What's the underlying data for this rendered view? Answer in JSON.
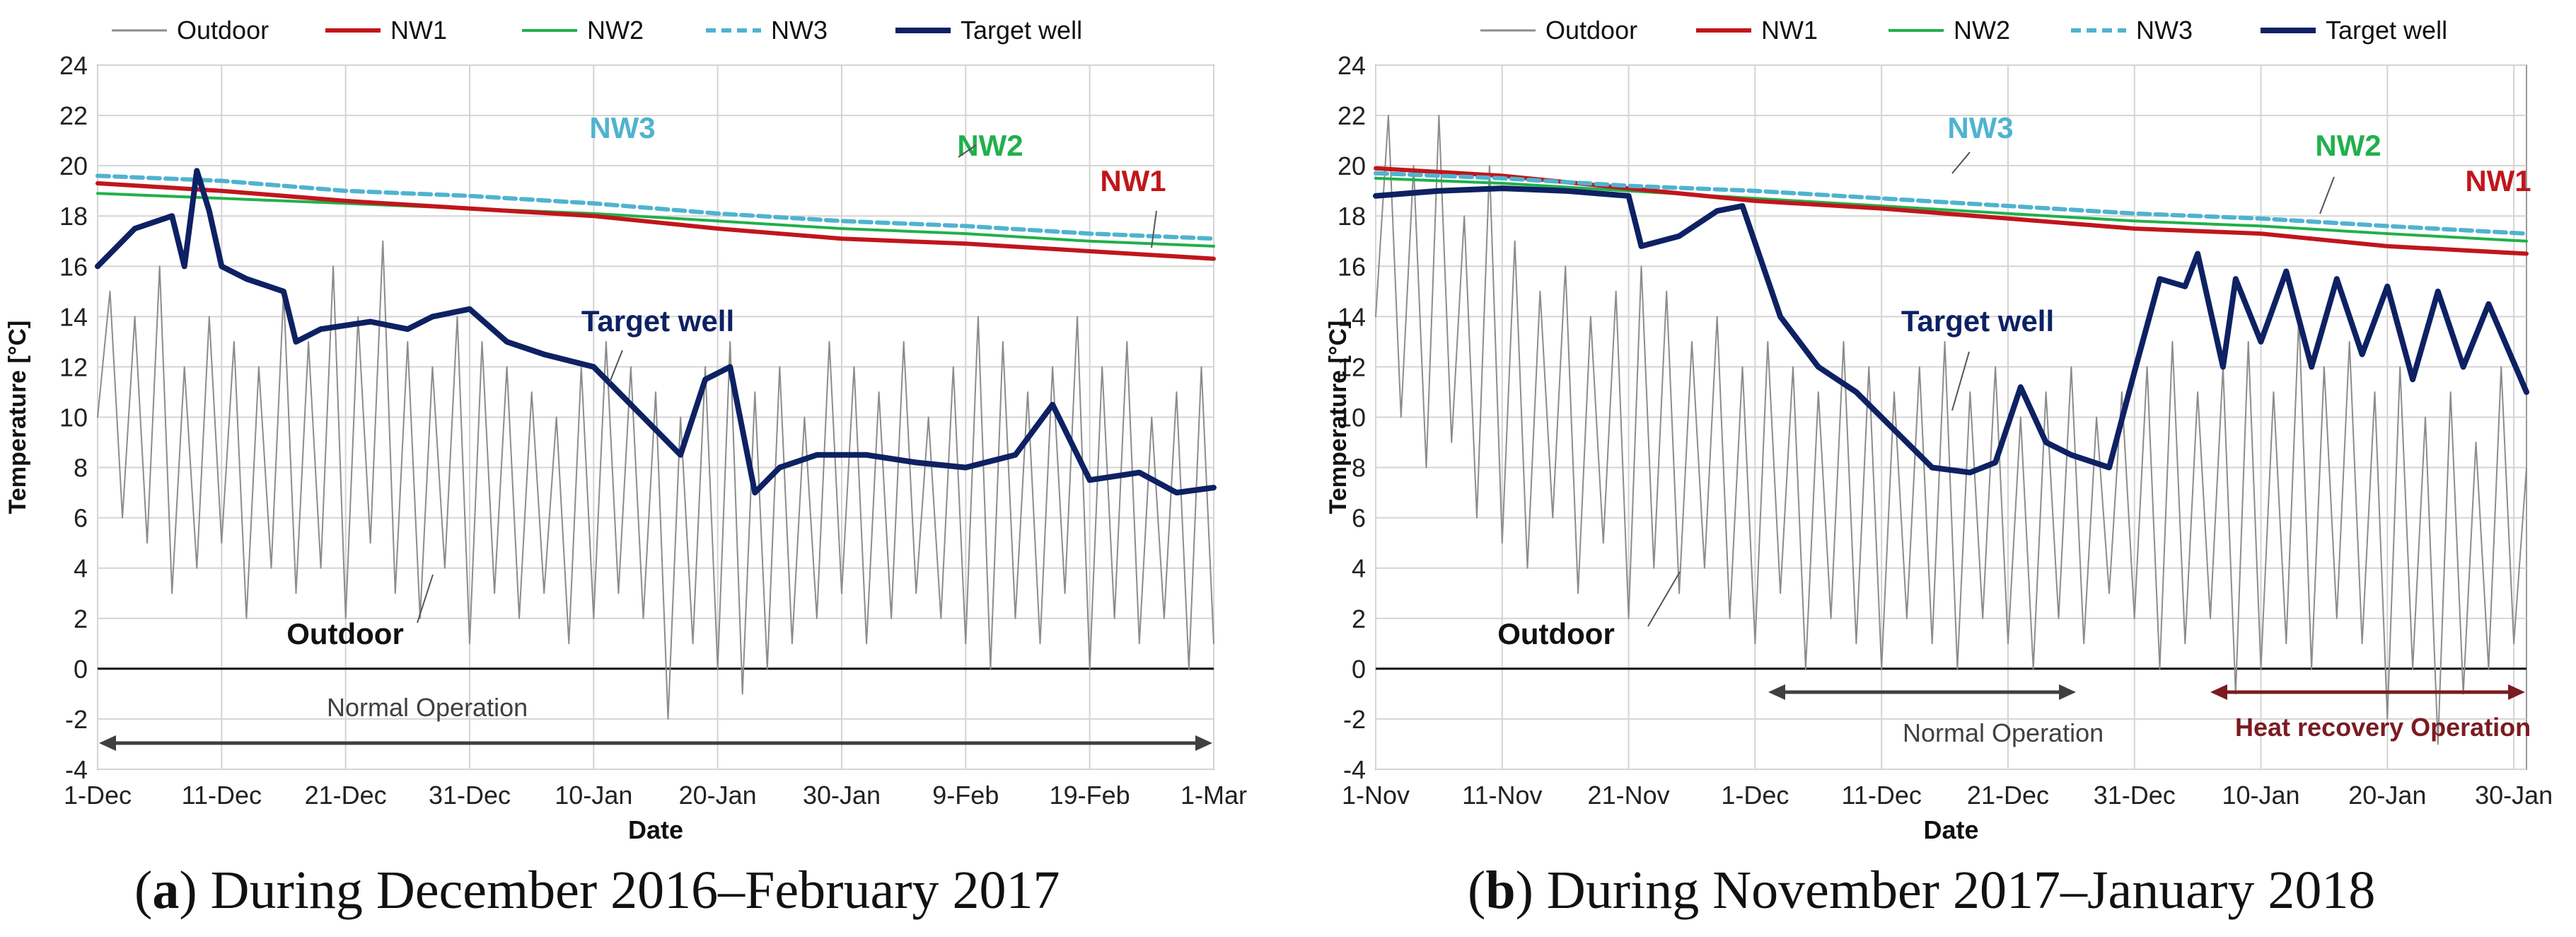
{
  "chart_data": [
    {
      "type": "line",
      "panel": "a",
      "xlabel": "Date",
      "ylabel": "Temperature [°C]",
      "ylim": [
        -4,
        24
      ],
      "yticks": [
        -4,
        -2,
        0,
        2,
        4,
        6,
        8,
        10,
        12,
        14,
        16,
        18,
        20,
        22,
        24
      ],
      "xlim_days": [
        0,
        90
      ],
      "xtick_labels": [
        "1-Dec",
        "11-Dec",
        "21-Dec",
        "31-Dec",
        "10-Jan",
        "20-Jan",
        "30-Jan",
        "9-Feb",
        "19-Feb",
        "1-Mar"
      ],
      "xtick_days": [
        0,
        10,
        20,
        30,
        40,
        50,
        60,
        70,
        80,
        90
      ],
      "legend": [
        "Outdoor",
        "NW1",
        "NW2",
        "NW3",
        "Target well"
      ],
      "colors": {
        "Outdoor": "#8c8c8c",
        "NW1": "#c0161c",
        "NW2": "#21b04b",
        "NW3": "#4fb3cf",
        "Target well": "#0d2163"
      },
      "series": [
        {
          "name": "NW1",
          "x": [
            0,
            10,
            20,
            30,
            40,
            50,
            60,
            70,
            80,
            90
          ],
          "values": [
            19.3,
            19.0,
            18.6,
            18.3,
            18.0,
            17.5,
            17.1,
            16.9,
            16.6,
            16.3
          ]
        },
        {
          "name": "NW2",
          "x": [
            0,
            10,
            20,
            30,
            40,
            50,
            60,
            70,
            80,
            90
          ],
          "values": [
            18.9,
            18.7,
            18.5,
            18.3,
            18.1,
            17.8,
            17.5,
            17.3,
            17.0,
            16.8
          ]
        },
        {
          "name": "NW3",
          "x": [
            0,
            10,
            20,
            30,
            40,
            50,
            60,
            70,
            80,
            90
          ],
          "values": [
            19.6,
            19.4,
            19.0,
            18.8,
            18.5,
            18.1,
            17.8,
            17.6,
            17.3,
            17.1
          ]
        },
        {
          "name": "Target well",
          "x": [
            0,
            3,
            6,
            7,
            8,
            9,
            10,
            12,
            15,
            16,
            18,
            22,
            25,
            27,
            30,
            33,
            36,
            40,
            44,
            47,
            49,
            51,
            53,
            55,
            58,
            62,
            66,
            70,
            74,
            77,
            80,
            84,
            87,
            90
          ],
          "values": [
            16.0,
            17.5,
            18.0,
            16.0,
            19.8,
            18.2,
            16.0,
            15.5,
            15.0,
            13.0,
            13.5,
            13.8,
            13.5,
            14.0,
            14.3,
            13.0,
            12.5,
            12.0,
            10.0,
            8.5,
            11.5,
            12.0,
            7.0,
            8.0,
            8.5,
            8.5,
            8.2,
            8.0,
            8.5,
            10.5,
            7.5,
            7.8,
            7.0,
            7.2
          ]
        },
        {
          "name": "Outdoor",
          "x": [
            0,
            1,
            2,
            3,
            4,
            5,
            6,
            7,
            8,
            9,
            10,
            11,
            12,
            13,
            14,
            15,
            16,
            17,
            18,
            19,
            20,
            21,
            22,
            23,
            24,
            25,
            26,
            27,
            28,
            29,
            30,
            31,
            32,
            33,
            34,
            35,
            36,
            37,
            38,
            39,
            40,
            41,
            42,
            43,
            44,
            45,
            46,
            47,
            48,
            49,
            50,
            51,
            52,
            53,
            54,
            55,
            56,
            57,
            58,
            59,
            60,
            61,
            62,
            63,
            64,
            65,
            66,
            67,
            68,
            69,
            70,
            71,
            72,
            73,
            74,
            75,
            76,
            77,
            78,
            79,
            80,
            81,
            82,
            83,
            84,
            85,
            86,
            87,
            88,
            89,
            90
          ],
          "values": [
            10,
            15,
            6,
            14,
            5,
            16,
            3,
            12,
            4,
            14,
            5,
            13,
            2,
            12,
            4,
            15,
            3,
            13,
            4,
            16,
            2,
            14,
            5,
            17,
            3,
            13,
            2,
            12,
            4,
            14,
            1,
            13,
            3,
            12,
            2,
            11,
            3,
            10,
            1,
            12,
            2,
            13,
            3,
            12,
            2,
            11,
            -2,
            10,
            1,
            12,
            0,
            13,
            -1,
            11,
            0,
            12,
            1,
            10,
            2,
            13,
            3,
            12,
            1,
            11,
            2,
            13,
            3,
            10,
            2,
            12,
            1,
            14,
            0,
            13,
            2,
            11,
            1,
            12,
            3,
            14,
            0,
            12,
            2,
            13,
            1,
            10,
            2,
            11,
            0,
            12,
            1
          ]
        }
      ],
      "annotations": [
        "NW3",
        "NW2",
        "NW1",
        "Target well",
        "Outdoor",
        "Normal Operation"
      ]
    },
    {
      "type": "line",
      "panel": "b",
      "xlabel": "Date",
      "ylabel": "Temperature [°C]",
      "ylim": [
        -4,
        24
      ],
      "yticks": [
        -4,
        -2,
        0,
        2,
        4,
        6,
        8,
        10,
        12,
        14,
        16,
        18,
        20,
        22,
        24
      ],
      "xlim_days": [
        0,
        91
      ],
      "xtick_labels": [
        "1-Nov",
        "11-Nov",
        "21-Nov",
        "1-Dec",
        "11-Dec",
        "21-Dec",
        "31-Dec",
        "10-Jan",
        "20-Jan",
        "30-Jan"
      ],
      "xtick_days": [
        0,
        10,
        20,
        30,
        40,
        50,
        60,
        70,
        80,
        90
      ],
      "legend": [
        "Outdoor",
        "NW1",
        "NW2",
        "NW3",
        "Target well"
      ],
      "colors": {
        "Outdoor": "#8c8c8c",
        "NW1": "#c0161c",
        "NW2": "#21b04b",
        "NW3": "#4fb3cf",
        "Target well": "#0d2163"
      },
      "series": [
        {
          "name": "NW1",
          "x": [
            0,
            10,
            20,
            30,
            40,
            50,
            60,
            70,
            80,
            91
          ],
          "values": [
            19.9,
            19.6,
            19.1,
            18.6,
            18.3,
            17.9,
            17.5,
            17.3,
            16.8,
            16.5
          ]
        },
        {
          "name": "NW2",
          "x": [
            0,
            10,
            20,
            30,
            40,
            50,
            60,
            70,
            80,
            91
          ],
          "values": [
            19.5,
            19.3,
            19.0,
            18.7,
            18.4,
            18.1,
            17.8,
            17.6,
            17.3,
            17.0
          ]
        },
        {
          "name": "NW3",
          "x": [
            0,
            10,
            20,
            30,
            40,
            50,
            60,
            70,
            80,
            91
          ],
          "values": [
            19.7,
            19.5,
            19.2,
            19.0,
            18.7,
            18.4,
            18.1,
            17.9,
            17.6,
            17.3
          ]
        },
        {
          "name": "Target well",
          "x": [
            0,
            5,
            10,
            15,
            20,
            21,
            24,
            27,
            29,
            32,
            35,
            38,
            41,
            44,
            47,
            49,
            51,
            53,
            55,
            58,
            60,
            62,
            64,
            65,
            67,
            68,
            70,
            72,
            74,
            76,
            78,
            80,
            82,
            84,
            86,
            88,
            91
          ],
          "values": [
            18.8,
            19.0,
            19.1,
            19.0,
            18.8,
            16.8,
            17.2,
            18.2,
            18.4,
            14.0,
            12.0,
            11.0,
            9.5,
            8.0,
            7.8,
            8.2,
            11.2,
            9.0,
            8.5,
            8.0,
            11.8,
            15.5,
            15.2,
            16.5,
            12.0,
            15.5,
            13.0,
            15.8,
            12.0,
            15.5,
            12.5,
            15.2,
            11.5,
            15.0,
            12.0,
            14.5,
            11.0
          ]
        },
        {
          "name": "Outdoor",
          "x": [
            0,
            1,
            2,
            3,
            4,
            5,
            6,
            7,
            8,
            9,
            10,
            11,
            12,
            13,
            14,
            15,
            16,
            17,
            18,
            19,
            20,
            21,
            22,
            23,
            24,
            25,
            26,
            27,
            28,
            29,
            30,
            31,
            32,
            33,
            34,
            35,
            36,
            37,
            38,
            39,
            40,
            41,
            42,
            43,
            44,
            45,
            46,
            47,
            48,
            49,
            50,
            51,
            52,
            53,
            54,
            55,
            56,
            57,
            58,
            59,
            60,
            61,
            62,
            63,
            64,
            65,
            66,
            67,
            68,
            69,
            70,
            71,
            72,
            73,
            74,
            75,
            76,
            77,
            78,
            79,
            80,
            81,
            82,
            83,
            84,
            85,
            86,
            87,
            88,
            89,
            90,
            91
          ],
          "values": [
            14,
            22,
            10,
            20,
            8,
            22,
            9,
            18,
            6,
            20,
            5,
            17,
            4,
            15,
            6,
            16,
            3,
            14,
            5,
            15,
            2,
            16,
            4,
            15,
            3,
            13,
            4,
            14,
            2,
            12,
            1,
            13,
            3,
            12,
            0,
            11,
            2,
            13,
            1,
            12,
            0,
            11,
            2,
            12,
            1,
            13,
            0,
            11,
            2,
            12,
            1,
            10,
            0,
            11,
            2,
            12,
            1,
            10,
            3,
            11,
            2,
            12,
            0,
            13,
            1,
            11,
            2,
            12,
            -1,
            13,
            0,
            11,
            1,
            14,
            0,
            12,
            2,
            13,
            1,
            11,
            -2,
            12,
            0,
            10,
            -3,
            11,
            -1,
            9,
            0,
            12,
            1,
            8
          ]
        }
      ],
      "annotations": [
        "NW3",
        "NW2",
        "NW1",
        "Target well",
        "Outdoor",
        "Normal Operation",
        "Heat recovery  Operation"
      ]
    }
  ],
  "captions": {
    "a_letter": "a",
    "a_text": ") During December 2016–February 2017",
    "b_letter": "b",
    "b_text": ") During November 2017–January 2018"
  }
}
